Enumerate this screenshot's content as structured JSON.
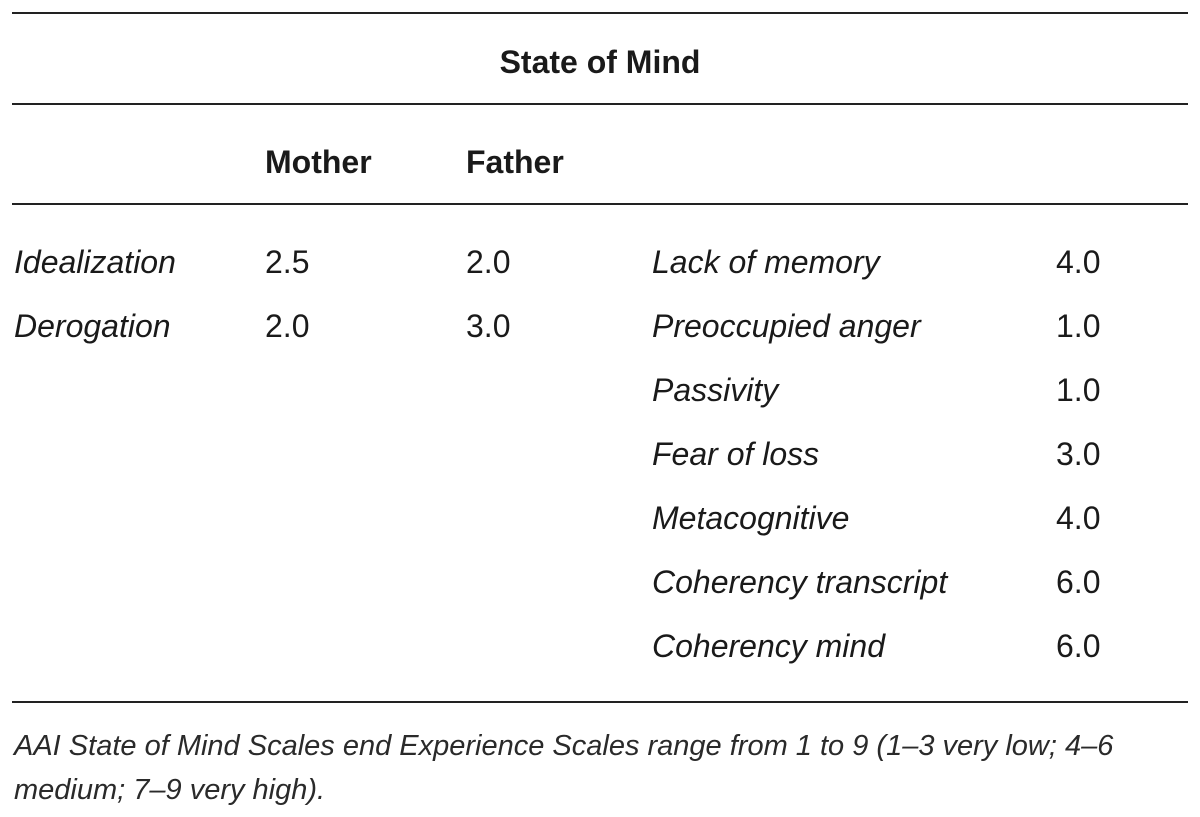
{
  "table": {
    "title": "State of Mind",
    "columns": {
      "mother": "Mother",
      "father": "Father"
    },
    "left_rows": [
      {
        "label": "Idealization",
        "mother": "2.5",
        "father": "2.0"
      },
      {
        "label": "Derogation",
        "mother": "2.0",
        "father": "3.0"
      }
    ],
    "right_rows": [
      {
        "label": "Lack of memory",
        "value": "4.0"
      },
      {
        "label": "Preoccupied anger",
        "value": "1.0"
      },
      {
        "label": "Passivity",
        "value": "1.0"
      },
      {
        "label": "Fear of loss",
        "value": "3.0"
      },
      {
        "label": "Metacognitive",
        "value": "4.0"
      },
      {
        "label": "Coherency transcript",
        "value": "6.0"
      },
      {
        "label": "Coherency mind",
        "value": "6.0"
      }
    ],
    "footnote": "AAI State of Mind Scales end Experience Scales range from 1 to 9 (1–3 very low; 4–6 medium; 7–9 very high)."
  }
}
